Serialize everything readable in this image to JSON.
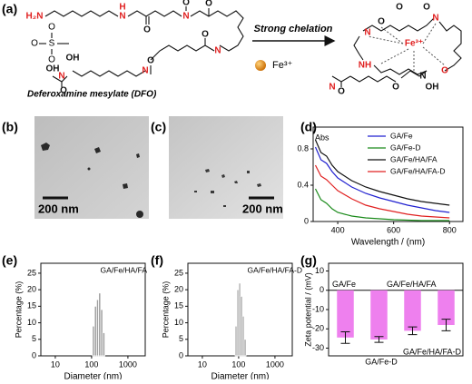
{
  "panel_a": {
    "label": "(a)",
    "dfo_name": "Deferoxamine mesylate (DFO)",
    "arrow_text": "Strong chelation",
    "ion": "Fe³⁺",
    "mesylate_atoms": [
      "O",
      "S",
      "O",
      "O"
    ],
    "dfo_atoms": [
      {
        "text": "H₂N",
        "color": "#e02020"
      },
      {
        "text": "H",
        "color": "#e02020"
      },
      {
        "text": "N",
        "color": "#e02020"
      },
      {
        "text": "O",
        "color": "#111111"
      },
      {
        "text": "O",
        "color": "#111111"
      },
      {
        "text": "O",
        "color": "#111111"
      },
      {
        "text": "N",
        "color": "#e02020"
      },
      {
        "text": "O",
        "color": "#111111"
      },
      {
        "text": "N",
        "color": "#e02020"
      },
      {
        "text": "OH",
        "color": "#111111"
      },
      {
        "text": "O",
        "color": "#111111"
      },
      {
        "text": "N",
        "color": "#e02020"
      },
      {
        "text": "OH",
        "color": "#111111"
      },
      {
        "text": "O",
        "color": "#111111"
      },
      {
        "text": "N",
        "color": "#e02020"
      }
    ],
    "complex_atoms": [
      {
        "text": "N",
        "color": "#e02020"
      },
      {
        "text": "O",
        "color": "#111111"
      },
      {
        "text": "O",
        "color": "#111111"
      },
      {
        "text": "O",
        "color": "#111111"
      },
      {
        "text": "N",
        "color": "#e02020"
      },
      {
        "text": "NH",
        "color": "#e02020"
      },
      {
        "text": "Fe³⁺",
        "color": "#e02020"
      },
      {
        "text": "O",
        "color": "#e02020"
      },
      {
        "text": "N",
        "color": "#111111"
      },
      {
        "text": "OH",
        "color": "#111111"
      },
      {
        "text": "O",
        "color": "#111111"
      },
      {
        "text": "N",
        "color": "#e02020"
      },
      {
        "text": "O",
        "color": "#111111"
      }
    ]
  },
  "panel_b": {
    "label": "(b)",
    "scale_bar": "200 nm"
  },
  "panel_c": {
    "label": "(c)",
    "scale_bar": "200 nm"
  },
  "chart_data": [
    {
      "type": "line",
      "label": "(d)",
      "x_label": "Wavelength / (nm)",
      "y_label": "Abs",
      "x": [
        320,
        340,
        360,
        380,
        400,
        450,
        500,
        550,
        600,
        650,
        700,
        750,
        800
      ],
      "series": [
        {
          "name": "GA/Fe",
          "color": "#2020d0",
          "values": [
            0.82,
            0.68,
            0.64,
            0.55,
            0.48,
            0.38,
            0.31,
            0.26,
            0.22,
            0.18,
            0.15,
            0.12,
            0.1
          ]
        },
        {
          "name": "GA/Fe-D",
          "color": "#1a8a1a",
          "values": [
            0.36,
            0.24,
            0.2,
            0.14,
            0.1,
            0.06,
            0.04,
            0.03,
            0.02,
            0.015,
            0.01,
            0.01,
            0.01
          ]
        },
        {
          "name": "GA/Fe/HA/FA",
          "color": "#111111",
          "values": [
            0.9,
            0.76,
            0.72,
            0.62,
            0.55,
            0.45,
            0.38,
            0.33,
            0.29,
            0.25,
            0.22,
            0.2,
            0.18
          ]
        },
        {
          "name": "GA/Fe/HA/FA-D",
          "color": "#e02020",
          "values": [
            0.62,
            0.5,
            0.46,
            0.4,
            0.34,
            0.25,
            0.18,
            0.14,
            0.11,
            0.08,
            0.06,
            0.05,
            0.04
          ]
        }
      ],
      "xlim": [
        312,
        848
      ],
      "ylim": [
        0,
        1.04
      ],
      "xticks": [
        400,
        600,
        800
      ],
      "yticks": [
        0,
        0.4,
        0.8
      ],
      "legend": "upper-right"
    },
    {
      "type": "histogram",
      "label": "(e)",
      "annotation": "GA/Fe/HA/FA",
      "x_label": "Diameter (nm)",
      "y_label": "Percentage (%)",
      "bins": [
        105,
        120,
        137,
        156,
        178,
        203,
        232
      ],
      "counts": [
        9,
        15,
        17,
        19,
        14,
        7
      ],
      "color": "#a0a0a0",
      "log_x": true,
      "xlim": [
        4,
        3000
      ],
      "ylim": [
        0,
        28
      ],
      "xticks": [
        10,
        100,
        1000
      ],
      "yticks": [
        0,
        5,
        10,
        15,
        20,
        25
      ]
    },
    {
      "type": "histogram",
      "label": "(f)",
      "annotation": "GA/Fe/HA/FA-D",
      "x_label": "Diameter (nm)",
      "y_label": "Percentage (%)",
      "bins": [
        80,
        90,
        101,
        113,
        127,
        142,
        160
      ],
      "counts": [
        9,
        20,
        22,
        18,
        12,
        5
      ],
      "color": "#a0a0a0",
      "log_x": true,
      "xlim": [
        4,
        3000
      ],
      "ylim": [
        0,
        28
      ],
      "xticks": [
        10,
        100,
        1000
      ],
      "yticks": [
        0,
        5,
        10,
        15,
        20,
        25
      ]
    },
    {
      "type": "bar",
      "label": "(g)",
      "y_label": "Zeta potential / (mV)",
      "categories": [
        "GA/Fe",
        "GA/Fe-D",
        "GA/Fe/HA/FA",
        "GA/Fe/HA/FA-D"
      ],
      "values": [
        -24.5,
        -25.5,
        -21,
        -18
      ],
      "errors": [
        3,
        1.5,
        2,
        3
      ],
      "color": "#ee80ee",
      "ylim": [
        -34,
        14
      ],
      "yticks": [
        10,
        0,
        -10,
        -20,
        -30
      ]
    }
  ]
}
